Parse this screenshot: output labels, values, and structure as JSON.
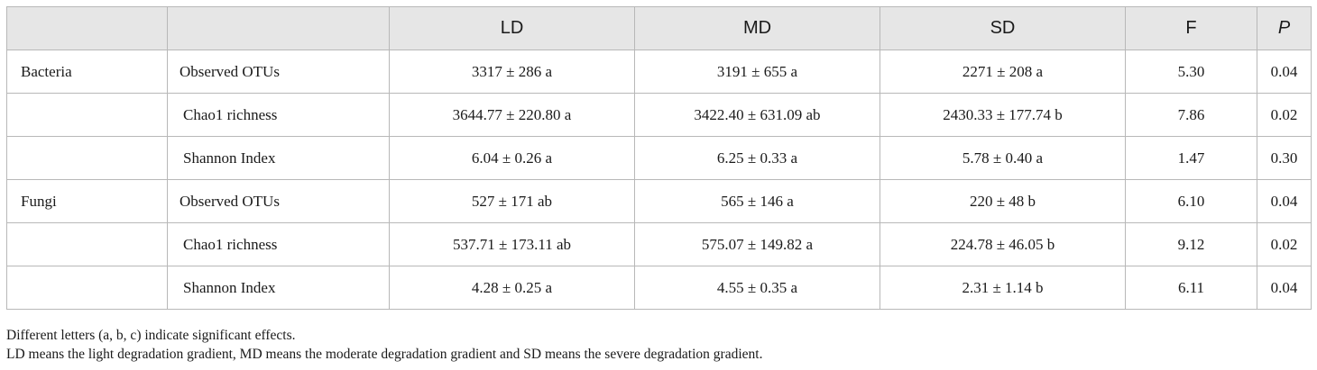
{
  "table": {
    "headers": [
      "",
      "",
      "LD",
      "MD",
      "SD",
      "F",
      "P"
    ],
    "rows": [
      {
        "group": "Bacteria",
        "metric": "Observed OTUs",
        "ld": "3317 ± 286 a",
        "md": "3191 ± 655 a",
        "sd": "2271 ± 208 a",
        "f": "5.30",
        "p": "0.04"
      },
      {
        "group": "",
        "metric": "Chao1 richness",
        "ld": "3644.77 ± 220.80 a",
        "md": "3422.40 ± 631.09 ab",
        "sd": "2430.33 ± 177.74 b",
        "f": "7.86",
        "p": "0.02"
      },
      {
        "group": "",
        "metric": "Shannon Index",
        "ld": "6.04 ± 0.26 a",
        "md": "6.25 ± 0.33 a",
        "sd": "5.78 ± 0.40 a",
        "f": "1.47",
        "p": "0.30"
      },
      {
        "group": "Fungi",
        "metric": "Observed OTUs",
        "ld": "527 ± 171 ab",
        "md": "565 ± 146 a",
        "sd": "220 ± 48 b",
        "f": "6.10",
        "p": "0.04"
      },
      {
        "group": "",
        "metric": "Chao1 richness",
        "ld": "537.71 ± 173.11 ab",
        "md": "575.07 ± 149.82 a",
        "sd": "224.78 ± 46.05 b",
        "f": "9.12",
        "p": "0.02"
      },
      {
        "group": "",
        "metric": "Shannon Index",
        "ld": "4.28 ± 0.25 a",
        "md": "4.55 ± 0.35 a",
        "sd": "2.31 ± 1.14 b",
        "f": "6.11",
        "p": "0.04"
      }
    ]
  },
  "footnotes": [
    "Different letters (a, b, c) indicate significant effects.",
    "LD means the light degradation gradient, MD means the moderate degradation gradient and SD means the severe degradation gradient."
  ]
}
